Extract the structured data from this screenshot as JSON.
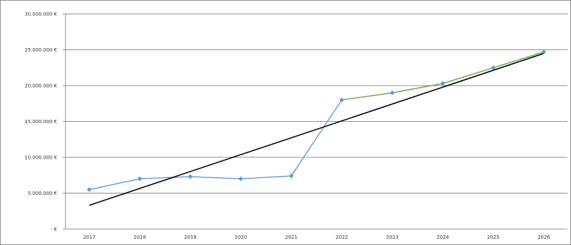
{
  "chart_data": {
    "type": "line",
    "title": "",
    "xlabel": "",
    "ylabel": "",
    "categories": [
      "2017",
      "2018",
      "2019",
      "2020",
      "2021",
      "2022",
      "2023",
      "2024",
      "2025",
      "2026"
    ],
    "y_tick_labels": [
      "-  €",
      "5.000.000 €",
      "10.000.000 €",
      "15.000.000 €",
      "20.000.000 €",
      "25.000.000 €",
      "30.000.000 €"
    ],
    "y_ticks": [
      0,
      5000000,
      10000000,
      15000000,
      20000000,
      25000000,
      30000000
    ],
    "ylim": [
      0,
      30000000
    ],
    "grid": true,
    "legend": "none",
    "series": [
      {
        "key": "actual",
        "color": "#5b9bd5",
        "marker": "diamond",
        "values": [
          5500000,
          7000000,
          7300000,
          7000000,
          7400000,
          18000000,
          19000000,
          20300000,
          22500000,
          24700000
        ]
      },
      {
        "key": "forecast",
        "color": "#70ad47",
        "marker": "none",
        "values": [
          null,
          null,
          null,
          null,
          null,
          18000000,
          19000000,
          20300000,
          22500000,
          24700000
        ]
      },
      {
        "key": "trend",
        "color": "#000000",
        "marker": "none",
        "values": [
          3300000,
          null,
          null,
          null,
          null,
          null,
          null,
          null,
          null,
          24500000
        ]
      }
    ]
  }
}
